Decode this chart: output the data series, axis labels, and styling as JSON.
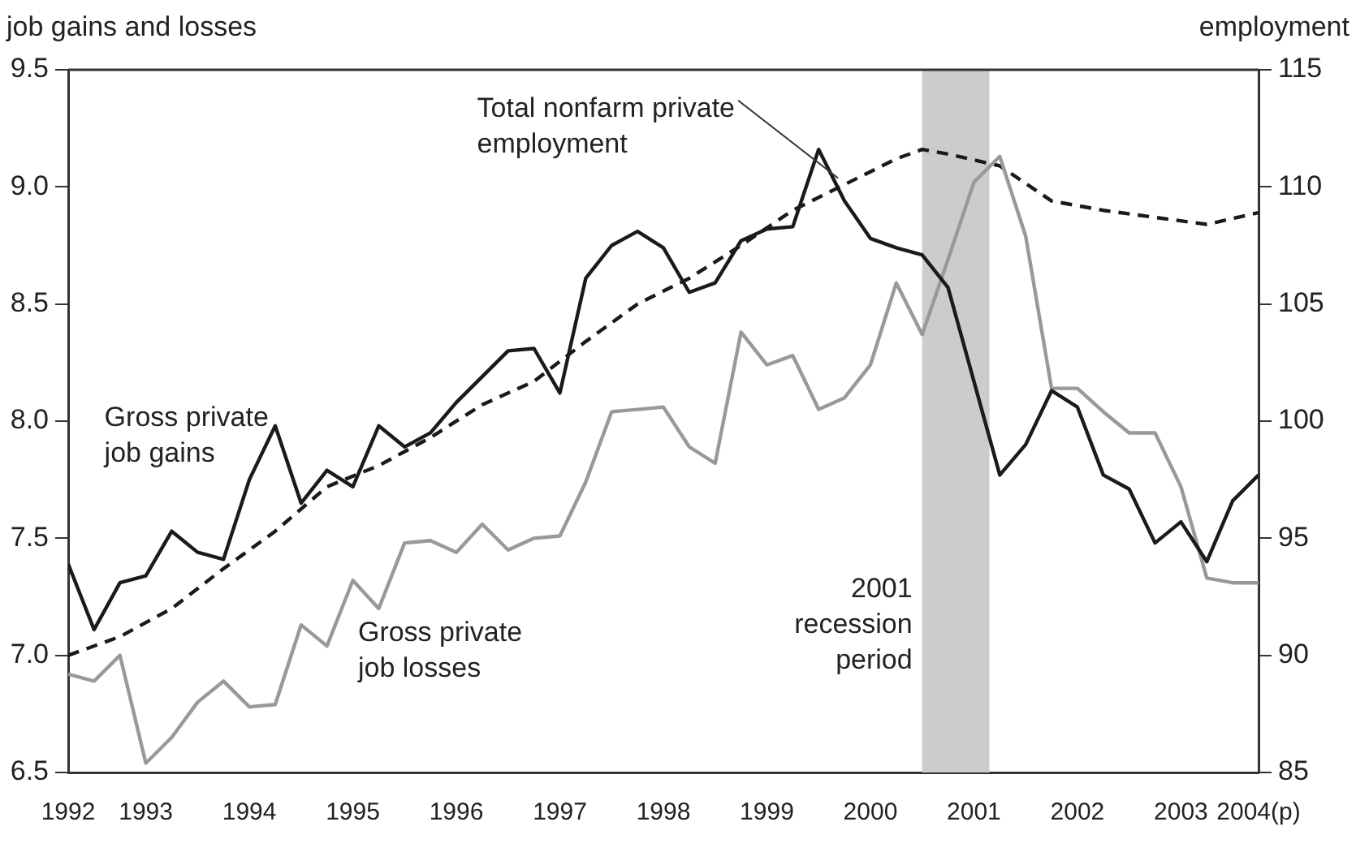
{
  "chart_data": {
    "type": "line",
    "ylabel": "job gains and losses",
    "y2label": "employment",
    "x": [
      1992.25,
      1992.5,
      1992.75,
      1993,
      1993.25,
      1993.5,
      1993.75,
      1994,
      1994.25,
      1994.5,
      1994.75,
      1995,
      1995.25,
      1995.5,
      1995.75,
      1996,
      1996.25,
      1996.5,
      1996.75,
      1997,
      1997.25,
      1997.5,
      1997.75,
      1998,
      1998.25,
      1998.5,
      1998.75,
      1999,
      1999.25,
      1999.5,
      1999.75,
      2000,
      2000.25,
      2000.5,
      2000.75,
      2001,
      2001.25,
      2001.5,
      2001.75,
      2002,
      2002.25,
      2002.5,
      2002.75,
      2003,
      2003.25,
      2003.5,
      2003.75
    ],
    "series": [
      {
        "name": "Gross private job gains",
        "color": "#1a1a1a",
        "line_style": "solid",
        "values": [
          7.39,
          7.11,
          7.31,
          7.34,
          7.53,
          7.44,
          7.41,
          7.75,
          7.98,
          7.65,
          7.79,
          7.72,
          7.98,
          7.89,
          7.95,
          8.08,
          8.19,
          8.3,
          8.31,
          8.12,
          8.61,
          8.75,
          8.81,
          8.74,
          8.55,
          8.59,
          8.77,
          8.82,
          8.83,
          9.16,
          8.94,
          8.78,
          8.74,
          8.71,
          8.57,
          8.17,
          7.77,
          7.9,
          8.13,
          8.06,
          7.77,
          7.71,
          7.48,
          7.57,
          7.4,
          7.66,
          7.77
        ]
      },
      {
        "name": "Gross private job losses",
        "color": "#999999",
        "line_style": "solid",
        "values": [
          6.92,
          6.89,
          7.0,
          6.54,
          6.65,
          6.8,
          6.89,
          6.78,
          6.79,
          7.13,
          7.04,
          7.32,
          7.2,
          7.48,
          7.49,
          7.44,
          7.56,
          7.45,
          7.5,
          7.51,
          7.74,
          8.04,
          8.05,
          8.06,
          7.89,
          7.82,
          8.38,
          8.24,
          8.28,
          8.05,
          8.1,
          8.24,
          8.59,
          8.37,
          8.69,
          9.02,
          9.13,
          8.79,
          8.14,
          8.14,
          8.04,
          7.95,
          7.95,
          7.72,
          7.33,
          7.31,
          7.31
        ]
      },
      {
        "name": "Total nonfarm private employment",
        "color": "#1a1a1a",
        "line_style": "dashed",
        "axis": "y2",
        "x": [
          1992.25,
          1992.75,
          1993.25,
          1993.75,
          1994.25,
          1994.75,
          1995.25,
          1995.75,
          1996.25,
          1996.75,
          1997.25,
          1997.75,
          1998.25,
          1998.75,
          1999.25,
          1999.75,
          2000.25,
          2000.5,
          2000.75,
          2001.25,
          2001.75,
          2002.25,
          2002.75,
          2003.25,
          2003.75
        ],
        "values": [
          90.0,
          90.8,
          92.0,
          93.7,
          95.3,
          97.2,
          98.1,
          99.3,
          100.7,
          101.7,
          103.4,
          105.0,
          106.1,
          107.5,
          109.0,
          110.1,
          111.2,
          111.6,
          111.4,
          110.9,
          109.4,
          109.0,
          108.7,
          108.4,
          108.9
        ]
      }
    ],
    "xlim": [
      1992.25,
      2003.75
    ],
    "xticks": [
      {
        "value": 1992.25,
        "label": "1992"
      },
      1993,
      1994,
      1995,
      1996,
      1997,
      1998,
      1999,
      2000,
      2001,
      2002,
      2003,
      {
        "value": 2003.75,
        "label": "2004(p)"
      }
    ],
    "ylim": [
      6.5,
      9.5
    ],
    "yticks": [
      6.5,
      {
        "value": 7,
        "label": "7.0"
      },
      7.5,
      {
        "value": 8,
        "label": "8.0"
      },
      8.5,
      {
        "value": 9,
        "label": "9.0"
      },
      9.5
    ],
    "y2lim": [
      85,
      115
    ],
    "y2ticks": [
      85,
      90,
      95,
      100,
      105,
      110,
      115
    ],
    "bands": [
      {
        "axis": "x",
        "from": 2000.5,
        "to": 2001.15,
        "label": "2001 recession period",
        "color": "#cccccc"
      }
    ],
    "grid": false,
    "legend": false,
    "marker": "none"
  }
}
